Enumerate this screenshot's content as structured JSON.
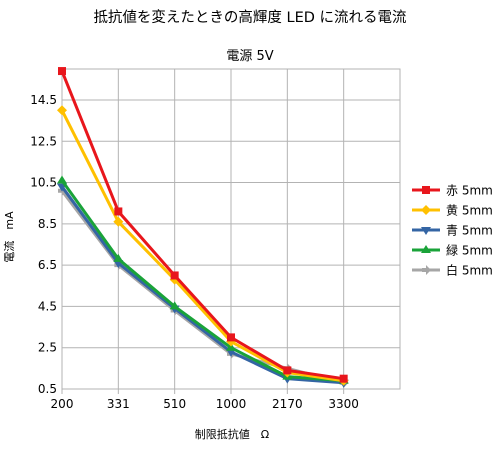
{
  "chart_data": {
    "type": "line",
    "title": "抵抗値を変えたときの高輝度 LED に流れる電流",
    "subtitle": "電源 5V",
    "xlabel": "制限抵抗値　Ω",
    "ylabel": "電流　mA",
    "categories": [
      "200",
      "331",
      "510",
      "1000",
      "2170",
      "3300"
    ],
    "ylim": [
      0.5,
      16.0
    ],
    "yticks": [
      "0.5",
      "2.5",
      "4.5",
      "6.5",
      "8.5",
      "10.5",
      "12.5",
      "14.5"
    ],
    "grid": true,
    "legend_position": "right",
    "series": [
      {
        "name": "赤 5mm",
        "color": "#e8161c",
        "marker": "square",
        "values": [
          15.9,
          9.1,
          6.0,
          3.0,
          1.4,
          1.0
        ]
      },
      {
        "name": "黄 5mm",
        "color": "#ffc000",
        "marker": "diamond",
        "values": [
          14.0,
          8.6,
          5.8,
          2.8,
          1.3,
          0.9
        ]
      },
      {
        "name": "青 5mm",
        "color": "#3465a4",
        "marker": "triangle-down",
        "values": [
          10.3,
          6.6,
          4.4,
          2.3,
          1.0,
          0.8
        ]
      },
      {
        "name": "緑 5mm",
        "color": "#1aa339",
        "marker": "triangle-up",
        "values": [
          10.6,
          6.8,
          4.5,
          2.5,
          1.1,
          0.9
        ]
      },
      {
        "name": "白 5mm",
        "color": "#a6a6a6",
        "marker": "arrow-right",
        "values": [
          10.1,
          6.5,
          4.3,
          2.2,
          1.5,
          0.8
        ]
      }
    ]
  }
}
